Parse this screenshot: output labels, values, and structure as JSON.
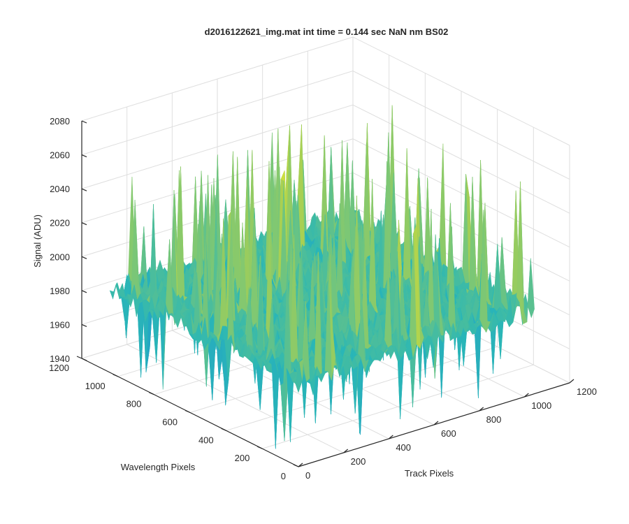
{
  "chart_data": {
    "type": "surface",
    "title": "d2016122621_img.mat int time = 0.144 sec  NaN nm BS02",
    "xlabel": "Track Pixels",
    "ylabel": "Wavelength Pixels",
    "zlabel": "Signal (ADU)",
    "xlim": [
      0,
      1200
    ],
    "ylim": [
      0,
      1200
    ],
    "zlim": [
      1940,
      2080
    ],
    "xticks": [
      "0",
      "200",
      "400",
      "600",
      "800",
      "1000",
      "1200"
    ],
    "yticks": [
      "0",
      "200",
      "400",
      "600",
      "800",
      "1000",
      "1200"
    ],
    "zticks": [
      "1940",
      "1960",
      "1980",
      "2000",
      "2020",
      "2040",
      "2060",
      "2080"
    ],
    "grid": true,
    "colormap": "parula",
    "data_extent": {
      "x": [
        0,
        1044
      ],
      "y": [
        0,
        1044
      ]
    },
    "signal": {
      "mean": 1990,
      "noise_band": [
        1955,
        2030
      ],
      "peak": 2070,
      "min": 1942
    },
    "colors": {
      "low": "#1e8fd6",
      "mid": "#2ab7b6",
      "high": "#a6cf54",
      "peak": "#e6e82e"
    }
  }
}
